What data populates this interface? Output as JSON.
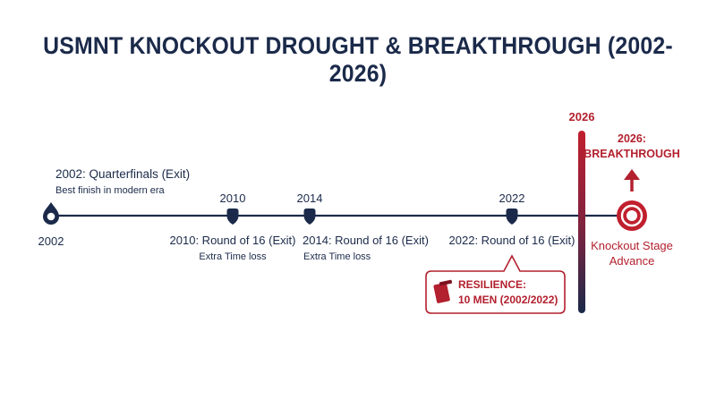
{
  "title": "USMNT KNOCKOUT DROUGHT & BREAKTHROUGH (2002-2026)",
  "events": [
    {
      "year": "2002",
      "label": "2002: Quarterfinals (Exit)",
      "note": "Best finish in modern era"
    },
    {
      "year": "2010",
      "label": "2010: Round of 16 (Exit)",
      "note": "Extra Time loss"
    },
    {
      "year": "2014",
      "label": "2014: Round of 16 (Exit)",
      "note": "Extra Time loss"
    },
    {
      "year": "2022",
      "label": "2022: Round of 16 (Exit)",
      "note": ""
    }
  ],
  "breakthrough": {
    "year": "2026",
    "heading_line1": "2026:",
    "heading_line2": "BREAKTHROUGH",
    "caption_line1": "Knockout Stage",
    "caption_line2": "Advance"
  },
  "callout": {
    "line1": "RESILIENCE:",
    "line2": "10 MEN (2002/2022)",
    "icon": "red-card-icon"
  },
  "colors": {
    "navy": "#1b2a4a",
    "red": "#b3202e",
    "accent_pink": "#e0707a"
  }
}
